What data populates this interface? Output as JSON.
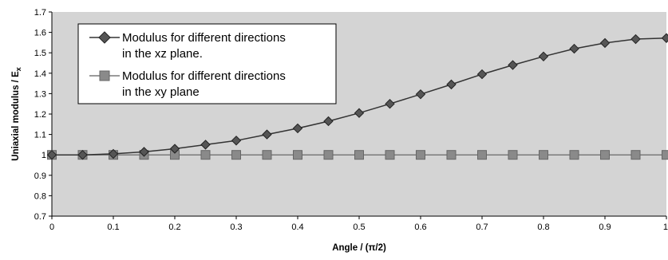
{
  "chart_data": {
    "type": "line",
    "title": "",
    "xlabel": "Angle / (π/2)",
    "ylabel": "Uniaxial modulus / E",
    "ylabel_subscript": "x",
    "xlim": [
      0,
      1
    ],
    "ylim": [
      0.7,
      1.7
    ],
    "x_ticks": [
      "0",
      "0.1",
      "0.2",
      "0.3",
      "0.4",
      "0.5",
      "0.6",
      "0.7",
      "0.8",
      "0.9",
      "1"
    ],
    "y_ticks": [
      "0.7",
      "0.8",
      "0.9",
      "1",
      "1.1",
      "1.2",
      "1.3",
      "1.4",
      "1.5",
      "1.6",
      "1.7"
    ],
    "grid": false,
    "plot_background": "#d4d4d4",
    "legend_position": "top-left",
    "x": [
      0,
      0.05,
      0.1,
      0.15,
      0.2,
      0.25,
      0.3,
      0.35,
      0.4,
      0.45,
      0.5,
      0.55,
      0.6,
      0.65,
      0.7,
      0.75,
      0.8,
      0.85,
      0.9,
      0.95,
      1
    ],
    "series": [
      {
        "name_lines": [
          "Modulus for different directions",
          "in the xz plane."
        ],
        "marker": "diamond",
        "color": "#333333",
        "values": [
          1.0,
          1.0,
          1.005,
          1.015,
          1.03,
          1.05,
          1.07,
          1.1,
          1.13,
          1.165,
          1.205,
          1.25,
          1.297,
          1.345,
          1.395,
          1.44,
          1.482,
          1.52,
          1.548,
          1.567,
          1.572
        ]
      },
      {
        "name_lines": [
          "Modulus for different directions",
          "in the xy plane"
        ],
        "marker": "square",
        "color": "#7a7a7a",
        "values": [
          1,
          1,
          1,
          1,
          1,
          1,
          1,
          1,
          1,
          1,
          1,
          1,
          1,
          1,
          1,
          1,
          1,
          1,
          1,
          1,
          1
        ]
      }
    ]
  }
}
